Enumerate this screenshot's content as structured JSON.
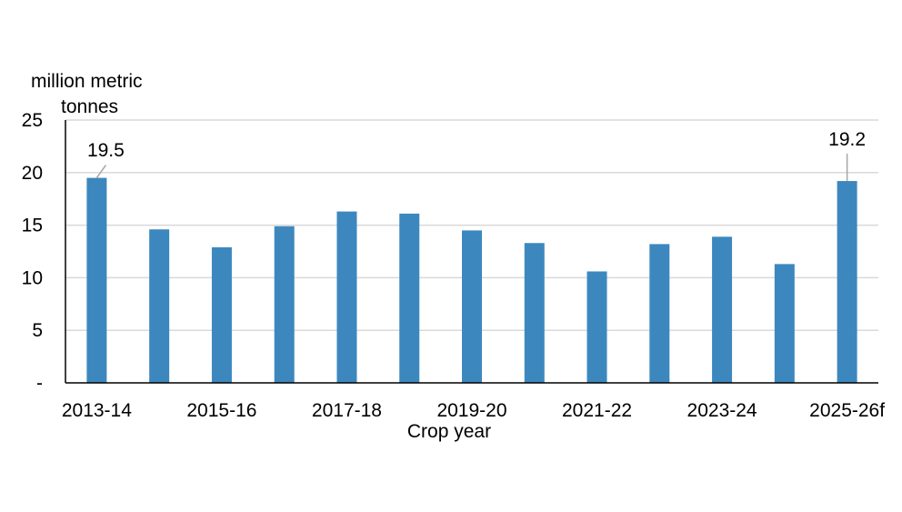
{
  "chart_data": {
    "type": "bar",
    "ylabel_lines": [
      "million metric",
      "tonnes"
    ],
    "xlabel": "Crop year",
    "categories": [
      "2013-14",
      "2014-15",
      "2015-16",
      "2016-17",
      "2017-18",
      "2018-19",
      "2019-20",
      "2020-21",
      "2021-22",
      "2022-23",
      "2023-24",
      "2024-25",
      "2025-26f"
    ],
    "tick_labels": [
      "2013-14",
      "",
      "2015-16",
      "",
      "2017-18",
      "",
      "2019-20",
      "",
      "2021-22",
      "",
      "2023-24",
      "",
      "2025-26f"
    ],
    "values": [
      19.5,
      14.6,
      12.9,
      14.9,
      16.3,
      16.1,
      14.5,
      13.3,
      10.6,
      13.2,
      13.9,
      11.3,
      19.2
    ],
    "ylim": [
      0,
      25
    ],
    "yticks": [
      0,
      5,
      10,
      15,
      20,
      25
    ],
    "ytick_labels": [
      "-",
      "5",
      "10",
      "15",
      "20",
      "25"
    ],
    "annotations": [
      {
        "category": "2013-14",
        "label": "19.5"
      },
      {
        "category": "2025-26f",
        "label": "19.2"
      }
    ],
    "grid": true,
    "bar_color": "#3C88BE",
    "grid_color": "#D9D9D9",
    "axis_color": "#000000"
  }
}
